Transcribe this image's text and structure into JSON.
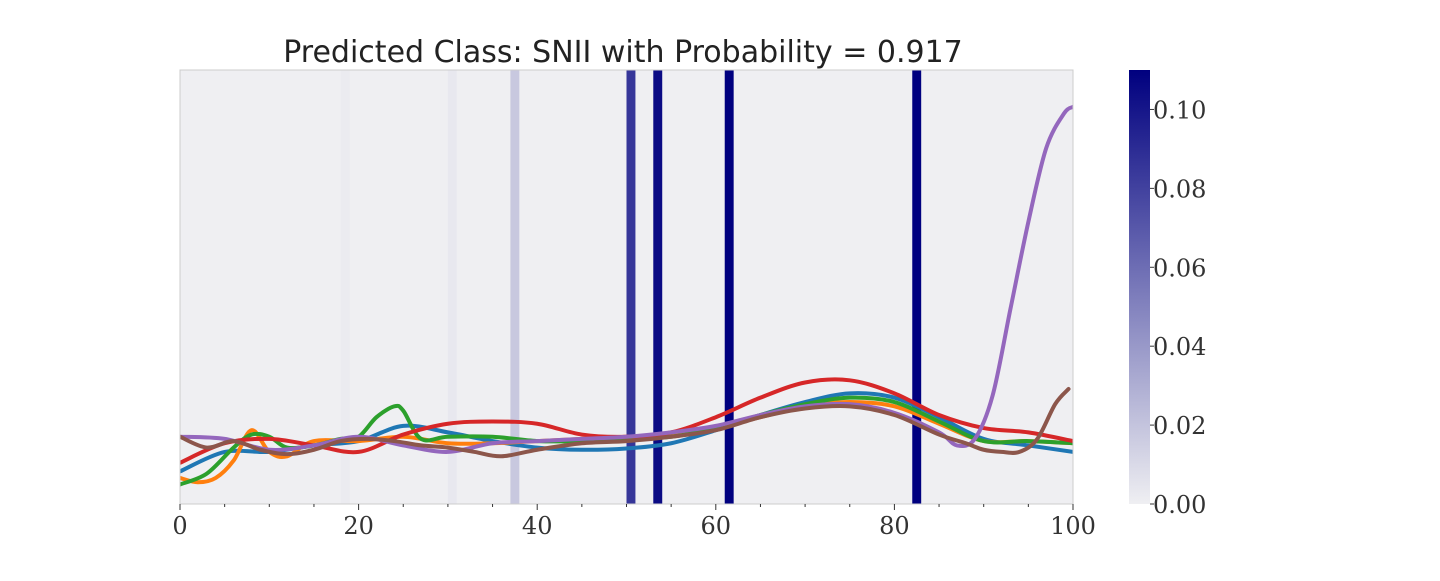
{
  "chart_data": {
    "type": "line",
    "title": "Predicted Class: SNII with Probability = 0.917",
    "xlabel": "",
    "ylabel": "",
    "xlim": [
      0,
      100
    ],
    "ylim": [
      0,
      1
    ],
    "xticks": [
      "0",
      "20",
      "40",
      "60",
      "80",
      "100"
    ],
    "xtick_values": [
      0,
      20,
      40,
      60,
      80,
      100
    ],
    "xminor_ticks": [
      5,
      10,
      15,
      25,
      30,
      35,
      45,
      50,
      55,
      65,
      70,
      75,
      85,
      90,
      95
    ],
    "grid": false,
    "legend": "none",
    "background": "#efeff2",
    "colorbar": {
      "range": [
        0,
        0.11
      ],
      "ticks": [
        "0.00",
        "0.02",
        "0.04",
        "0.06",
        "0.08",
        "0.10"
      ],
      "tick_values": [
        0,
        0.02,
        0.04,
        0.06,
        0.08,
        0.1
      ],
      "color_low": "#efeff2",
      "color_high": "#00007f"
    },
    "attention_bands": [
      {
        "x0": 18,
        "x1": 19,
        "weight": 0.002
      },
      {
        "x0": 30,
        "x1": 31,
        "weight": 0.003
      },
      {
        "x0": 37,
        "x1": 38,
        "weight": 0.018
      },
      {
        "x0": 50,
        "x1": 51,
        "weight": 0.085
      },
      {
        "x0": 53,
        "x1": 54,
        "weight": 0.105
      },
      {
        "x0": 61,
        "x1": 62,
        "weight": 0.11
      },
      {
        "x0": 82,
        "x1": 83,
        "weight": 0.11
      }
    ],
    "series": [
      {
        "color": "#1f77b4",
        "x": [
          0,
          5,
          10,
          15,
          20,
          25,
          30,
          35,
          40,
          45,
          50,
          55,
          60,
          65,
          70,
          75,
          80,
          85,
          90,
          95,
          100
        ],
        "y": [
          0.075,
          0.12,
          0.12,
          0.135,
          0.145,
          0.18,
          0.165,
          0.145,
          0.13,
          0.125,
          0.128,
          0.14,
          0.17,
          0.205,
          0.235,
          0.255,
          0.245,
          0.2,
          0.15,
          0.135,
          0.12
        ]
      },
      {
        "color": "#ff7f0e",
        "x": [
          0,
          2,
          4,
          6,
          8,
          10,
          12,
          15,
          20,
          25,
          30,
          35,
          40,
          45,
          50,
          55,
          60,
          65,
          70,
          75,
          80,
          85,
          90,
          95,
          100
        ],
        "y": [
          0.06,
          0.05,
          0.06,
          0.1,
          0.17,
          0.12,
          0.11,
          0.145,
          0.145,
          0.155,
          0.14,
          0.14,
          0.145,
          0.15,
          0.155,
          0.16,
          0.175,
          0.2,
          0.225,
          0.235,
          0.225,
          0.185,
          0.145,
          0.145,
          0.14
        ]
      },
      {
        "color": "#2ca02c",
        "x": [
          0,
          3,
          6,
          8,
          10,
          12,
          15,
          18,
          20,
          22,
          24,
          25,
          27,
          30,
          35,
          40,
          45,
          50,
          55,
          60,
          65,
          70,
          75,
          80,
          85,
          90,
          95,
          100
        ],
        "y": [
          0.045,
          0.07,
          0.13,
          0.16,
          0.155,
          0.13,
          0.135,
          0.15,
          0.155,
          0.2,
          0.225,
          0.215,
          0.15,
          0.155,
          0.155,
          0.145,
          0.145,
          0.15,
          0.155,
          0.175,
          0.205,
          0.23,
          0.245,
          0.235,
          0.19,
          0.145,
          0.145,
          0.14
        ]
      },
      {
        "color": "#d62728",
        "x": [
          0,
          5,
          10,
          15,
          20,
          25,
          30,
          35,
          40,
          45,
          50,
          55,
          60,
          65,
          70,
          75,
          80,
          85,
          90,
          95,
          100
        ],
        "y": [
          0.095,
          0.14,
          0.15,
          0.135,
          0.12,
          0.16,
          0.185,
          0.19,
          0.185,
          0.16,
          0.155,
          0.165,
          0.2,
          0.245,
          0.28,
          0.285,
          0.255,
          0.205,
          0.175,
          0.165,
          0.145
        ]
      },
      {
        "color": "#9467bd",
        "x": [
          0,
          5,
          10,
          15,
          20,
          25,
          30,
          35,
          40,
          45,
          50,
          55,
          60,
          65,
          70,
          75,
          80,
          85,
          87,
          89,
          91,
          93,
          95,
          97,
          99,
          100
        ],
        "y": [
          0.155,
          0.15,
          0.125,
          0.135,
          0.155,
          0.135,
          0.12,
          0.14,
          0.145,
          0.15,
          0.155,
          0.165,
          0.18,
          0.205,
          0.225,
          0.23,
          0.21,
          0.165,
          0.135,
          0.15,
          0.25,
          0.45,
          0.65,
          0.82,
          0.9,
          0.915
        ]
      },
      {
        "color": "#8c564b",
        "x": [
          0,
          3,
          6,
          9,
          12,
          15,
          18,
          21,
          24,
          27,
          30,
          33,
          36,
          40,
          45,
          50,
          55,
          60,
          65,
          70,
          75,
          80,
          85,
          88,
          90,
          92,
          94,
          96,
          98,
          99.5
        ],
        "y": [
          0.155,
          0.13,
          0.145,
          0.125,
          0.115,
          0.125,
          0.145,
          0.15,
          0.145,
          0.135,
          0.13,
          0.12,
          0.11,
          0.125,
          0.14,
          0.145,
          0.155,
          0.17,
          0.2,
          0.22,
          0.225,
          0.205,
          0.16,
          0.14,
          0.125,
          0.12,
          0.12,
          0.15,
          0.23,
          0.265
        ]
      }
    ]
  }
}
